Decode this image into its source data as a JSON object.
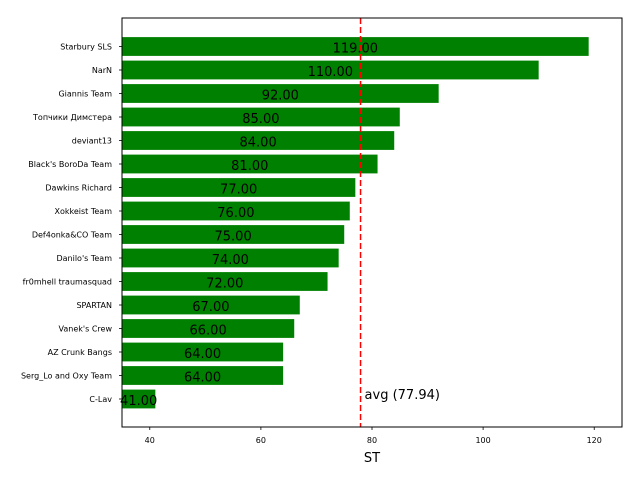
{
  "chart_data": {
    "type": "bar",
    "orientation": "horizontal",
    "title": "",
    "xlabel": "ST",
    "ylabel": "",
    "xlim": [
      35,
      125
    ],
    "xticks": [
      40,
      60,
      80,
      100,
      120
    ],
    "grid": false,
    "bar_color": "#008000",
    "categories": [
      "Starbury SLS",
      "NarN",
      "Giannis Team",
      "Топчики Димстера",
      "deviant13",
      "Black's BoroDa Team",
      "Dawkins Richard",
      "Xokkeist Team",
      "Def4onka&CO Team",
      "Danilo's Team",
      "fr0mhell traumasquad",
      "SPARTAN",
      "Vanek's Crew",
      "AZ Crunk Bangs",
      "Serg_Lo and Oxy Team",
      "C-Lav"
    ],
    "values": [
      119,
      110,
      92,
      85,
      84,
      81,
      77,
      76,
      75,
      74,
      72,
      67,
      66,
      64,
      64,
      41
    ],
    "value_labels": [
      "119.00",
      "110.00",
      "92.00",
      "85.00",
      "84.00",
      "81.00",
      "77.00",
      "76.00",
      "75.00",
      "74.00",
      "72.00",
      "67.00",
      "66.00",
      "64.00",
      "64.00",
      "41.00"
    ],
    "reference_line": {
      "value": 77.94,
      "label": "avg (77.94)",
      "color": "#ff0000",
      "style": "dashed"
    }
  }
}
